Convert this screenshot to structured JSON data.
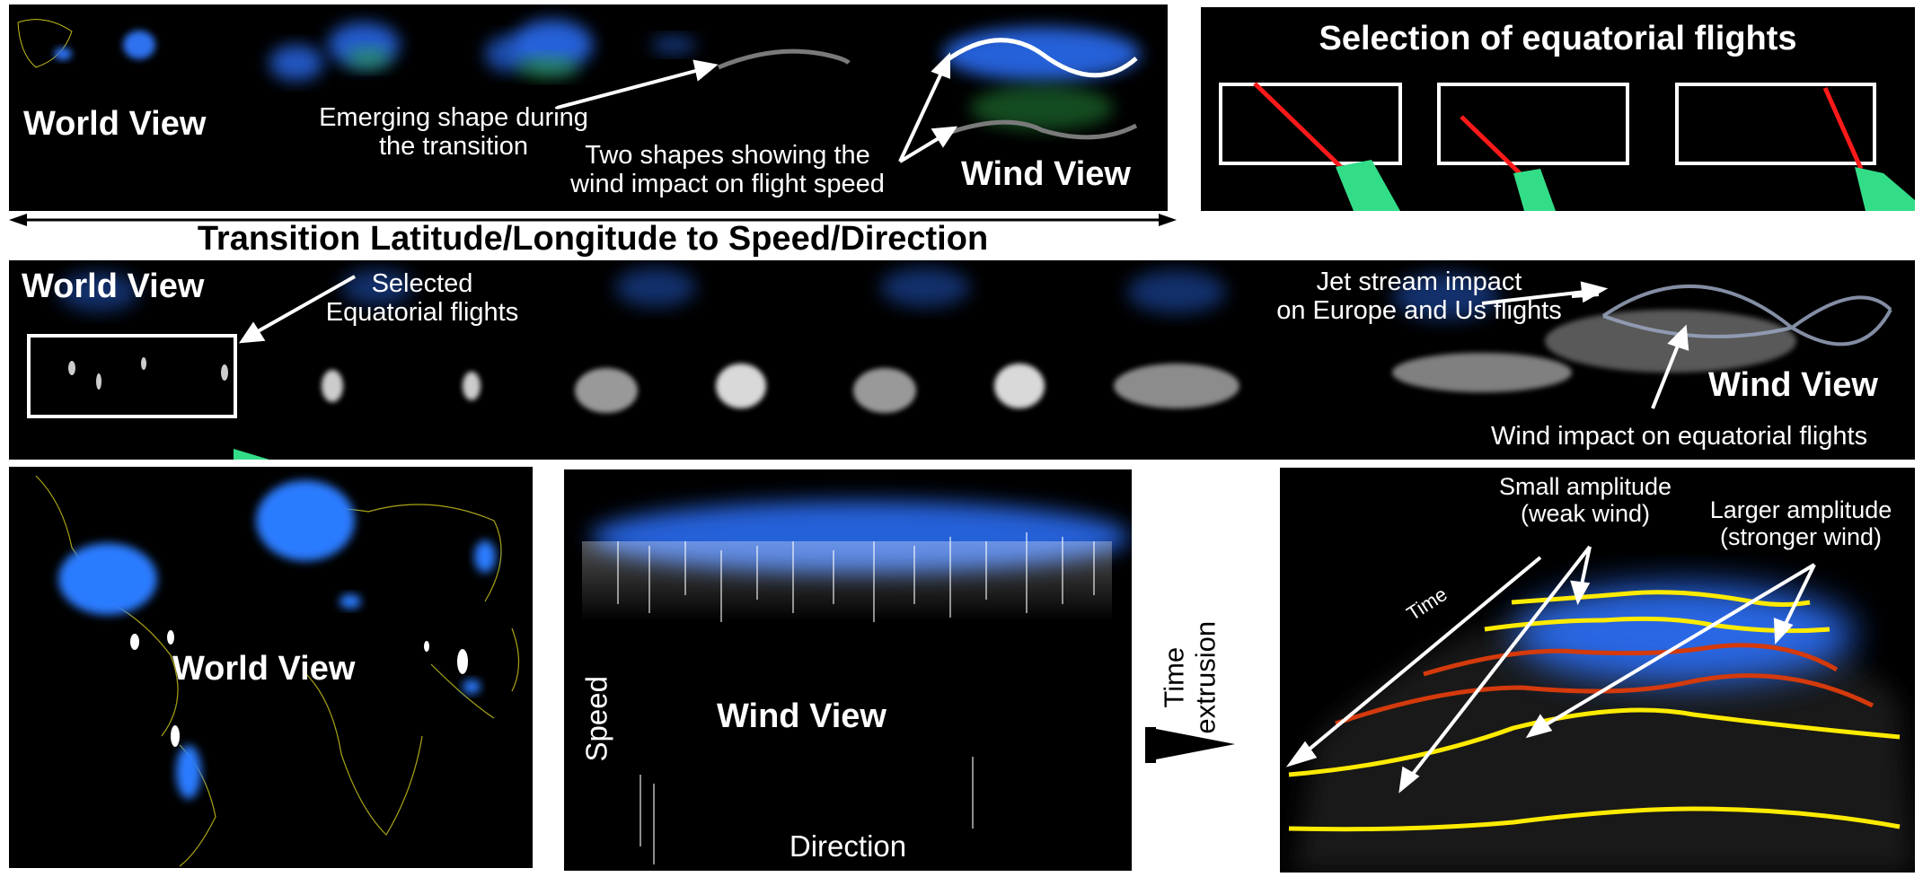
{
  "top_strip": {
    "world_view": "World View",
    "emerging_line1": "Emerging shape during",
    "emerging_line2": "the transition",
    "two_shapes_line1": "Two shapes showing the",
    "two_shapes_line2": "wind impact on flight speed",
    "wind_view": "Wind View"
  },
  "selection_panel": {
    "title": "Selection of equatorial flights"
  },
  "transition_caption": "Transition Latitude/Longitude to Speed/Direction",
  "middle_strip": {
    "world_view": "World View",
    "selected_line1": "Selected",
    "selected_line2": "Equatorial flights",
    "jet_line1": "Jet stream impact",
    "jet_line2": "on Europe and Us flights",
    "wind_view": "Wind View",
    "wind_impact": "Wind impact on equatorial flights"
  },
  "bottom": {
    "world_view": "World View",
    "wind_view": "Wind View",
    "speed_axis": "Speed",
    "direction_axis": "Direction",
    "time_extrusion_line1": "Time",
    "time_extrusion_line2": "extrusion",
    "time_label": "Time",
    "small_amp_line1": "Small amplitude",
    "small_amp_line2": "(weak wind)",
    "large_amp_line1": "Larger amplitude",
    "large_amp_line2": "(stronger wind)"
  },
  "colors": {
    "flight_blue": "#2a6cf0",
    "flight_green": "#2fa84a",
    "coast_yellow": "#d8d21a",
    "selection_red": "#ff1a1a",
    "curve_yellow": "#ffeb00",
    "curve_red": "#d43a0c",
    "frame_white": "#ffffff"
  }
}
